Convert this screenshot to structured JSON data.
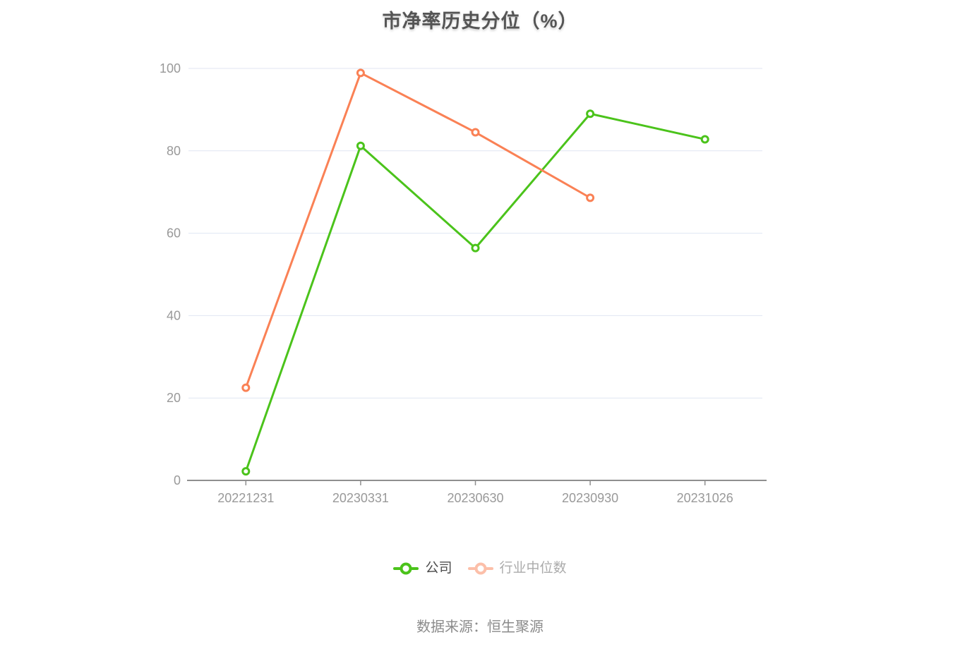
{
  "title": "市净率历史分位（%）",
  "footer": "数据来源：恒生聚源",
  "legend": [
    {
      "label": "公司",
      "color": "#4BC31B",
      "text_color": "#4D4D4D",
      "marker_opacity": 1
    },
    {
      "label": "行业中位数",
      "color": "#FA8155",
      "text_color": "#ABABAB",
      "marker_opacity": 0.5
    }
  ],
  "colors": {
    "grid": "#E0E6F2",
    "axis": "#8F8F8F",
    "axis_label": "#999999",
    "title": "#555555",
    "background": "#FFFFFF"
  },
  "chart_data": {
    "type": "line",
    "title": "市净率历史分位（%）",
    "categories": [
      "20221231",
      "20230331",
      "20230630",
      "20230930",
      "20231026"
    ],
    "series": [
      {
        "name": "公司",
        "color": "#4BC31B",
        "values": [
          2.2,
          81.2,
          56.4,
          89.0,
          82.8
        ]
      },
      {
        "name": "行业中位数",
        "color": "#FA8155",
        "values": [
          22.5,
          98.9,
          84.5,
          68.6,
          null
        ]
      }
    ],
    "xlabel": "",
    "ylabel": "",
    "ylim": [
      0,
      100
    ],
    "yticks": [
      0,
      20,
      40,
      60,
      80,
      100
    ],
    "grid": "horizontal-only",
    "legend_position": "bottom",
    "source_note": "数据来源：恒生聚源"
  }
}
